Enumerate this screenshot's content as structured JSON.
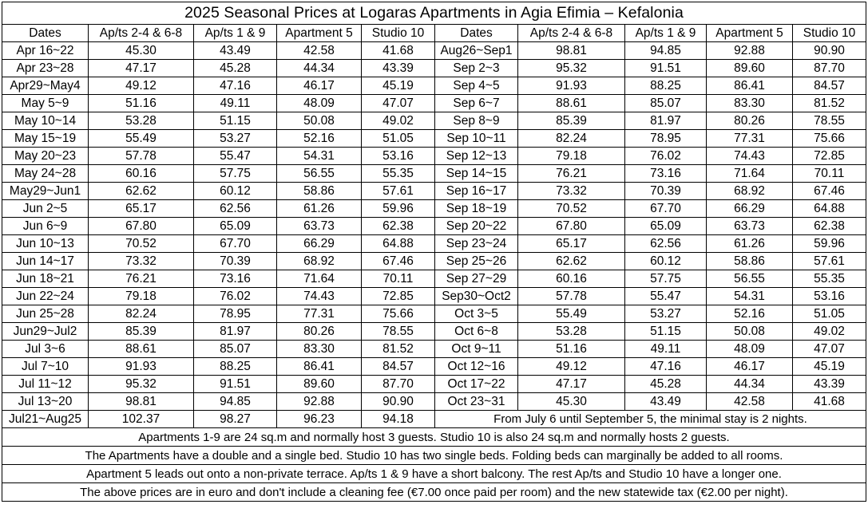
{
  "title": "2025 Seasonal Prices at Logaras Apartments in Agia Efimia – Kefalonia",
  "headers": [
    "Dates",
    "Ap/ts 2-4 & 6-8",
    "Ap/ts 1 & 9",
    "Apartment 5",
    "Studio 10"
  ],
  "left_rows": [
    {
      "dates": "Apr 16~22",
      "a": "45.30",
      "b": "43.49",
      "c": "42.58",
      "d": "41.68"
    },
    {
      "dates": "Apr 23~28",
      "a": "47.17",
      "b": "45.28",
      "c": "44.34",
      "d": "43.39"
    },
    {
      "dates": "Apr29~May4",
      "a": "49.12",
      "b": "47.16",
      "c": "46.17",
      "d": "45.19"
    },
    {
      "dates": "May 5~9",
      "a": "51.16",
      "b": "49.11",
      "c": "48.09",
      "d": "47.07"
    },
    {
      "dates": "May 10~14",
      "a": "53.28",
      "b": "51.15",
      "c": "50.08",
      "d": "49.02"
    },
    {
      "dates": "May 15~19",
      "a": "55.49",
      "b": "53.27",
      "c": "52.16",
      "d": "51.05"
    },
    {
      "dates": "May 20~23",
      "a": "57.78",
      "b": "55.47",
      "c": "54.31",
      "d": "53.16"
    },
    {
      "dates": "May 24~28",
      "a": "60.16",
      "b": "57.75",
      "c": "56.55",
      "d": "55.35"
    },
    {
      "dates": "May29~Jun1",
      "a": "62.62",
      "b": "60.12",
      "c": "58.86",
      "d": "57.61"
    },
    {
      "dates": "Jun 2~5",
      "a": "65.17",
      "b": "62.56",
      "c": "61.26",
      "d": "59.96"
    },
    {
      "dates": "Jun 6~9",
      "a": "67.80",
      "b": "65.09",
      "c": "63.73",
      "d": "62.38"
    },
    {
      "dates": "Jun 10~13",
      "a": "70.52",
      "b": "67.70",
      "c": "66.29",
      "d": "64.88"
    },
    {
      "dates": "Jun 14~17",
      "a": "73.32",
      "b": "70.39",
      "c": "68.92",
      "d": "67.46"
    },
    {
      "dates": "Jun 18~21",
      "a": "76.21",
      "b": "73.16",
      "c": "71.64",
      "d": "70.11"
    },
    {
      "dates": "Jun 22~24",
      "a": "79.18",
      "b": "76.02",
      "c": "74.43",
      "d": "72.85"
    },
    {
      "dates": "Jun 25~28",
      "a": "82.24",
      "b": "78.95",
      "c": "77.31",
      "d": "75.66"
    },
    {
      "dates": "Jun29~Jul2",
      "a": "85.39",
      "b": "81.97",
      "c": "80.26",
      "d": "78.55"
    },
    {
      "dates": "Jul 3~6",
      "a": "88.61",
      "b": "85.07",
      "c": "83.30",
      "d": "81.52"
    },
    {
      "dates": "Jul 7~10",
      "a": "91.93",
      "b": "88.25",
      "c": "86.41",
      "d": "84.57"
    },
    {
      "dates": "Jul 11~12",
      "a": "95.32",
      "b": "91.51",
      "c": "89.60",
      "d": "87.70"
    },
    {
      "dates": "Jul 13~20",
      "a": "98.81",
      "b": "94.85",
      "c": "92.88",
      "d": "90.90"
    },
    {
      "dates": "Jul21~Aug25",
      "a": "102.37",
      "b": "98.27",
      "c": "96.23",
      "d": "94.18"
    }
  ],
  "right_rows": [
    {
      "dates": "Aug26~Sep1",
      "a": "98.81",
      "b": "94.85",
      "c": "92.88",
      "d": "90.90"
    },
    {
      "dates": "Sep 2~3",
      "a": "95.32",
      "b": "91.51",
      "c": "89.60",
      "d": "87.70"
    },
    {
      "dates": "Sep 4~5",
      "a": "91.93",
      "b": "88.25",
      "c": "86.41",
      "d": "84.57"
    },
    {
      "dates": "Sep 6~7",
      "a": "88.61",
      "b": "85.07",
      "c": "83.30",
      "d": "81.52"
    },
    {
      "dates": "Sep 8~9",
      "a": "85.39",
      "b": "81.97",
      "c": "80.26",
      "d": "78.55"
    },
    {
      "dates": "Sep 10~11",
      "a": "82.24",
      "b": "78.95",
      "c": "77.31",
      "d": "75.66"
    },
    {
      "dates": "Sep 12~13",
      "a": "79.18",
      "b": "76.02",
      "c": "74.43",
      "d": "72.85"
    },
    {
      "dates": "Sep 14~15",
      "a": "76.21",
      "b": "73.16",
      "c": "71.64",
      "d": "70.11"
    },
    {
      "dates": "Sep 16~17",
      "a": "73.32",
      "b": "70.39",
      "c": "68.92",
      "d": "67.46"
    },
    {
      "dates": "Sep 18~19",
      "a": "70.52",
      "b": "67.70",
      "c": "66.29",
      "d": "64.88"
    },
    {
      "dates": "Sep 20~22",
      "a": "67.80",
      "b": "65.09",
      "c": "63.73",
      "d": "62.38"
    },
    {
      "dates": "Sep 23~24",
      "a": "65.17",
      "b": "62.56",
      "c": "61.26",
      "d": "59.96"
    },
    {
      "dates": "Sep 25~26",
      "a": "62.62",
      "b": "60.12",
      "c": "58.86",
      "d": "57.61"
    },
    {
      "dates": "Sep 27~29",
      "a": "60.16",
      "b": "57.75",
      "c": "56.55",
      "d": "55.35"
    },
    {
      "dates": "Sep30~Oct2",
      "a": "57.78",
      "b": "55.47",
      "c": "54.31",
      "d": "53.16"
    },
    {
      "dates": "Oct 3~5",
      "a": "55.49",
      "b": "53.27",
      "c": "52.16",
      "d": "51.05"
    },
    {
      "dates": "Oct 6~8",
      "a": "53.28",
      "b": "51.15",
      "c": "50.08",
      "d": "49.02"
    },
    {
      "dates": "Oct 9~11",
      "a": "51.16",
      "b": "49.11",
      "c": "48.09",
      "d": "47.07"
    },
    {
      "dates": "Oct 12~16",
      "a": "49.12",
      "b": "47.16",
      "c": "46.17",
      "d": "45.19"
    },
    {
      "dates": "Oct 17~22",
      "a": "47.17",
      "b": "45.28",
      "c": "44.34",
      "d": "43.39"
    },
    {
      "dates": "Oct 23~31",
      "a": "45.30",
      "b": "43.49",
      "c": "42.58",
      "d": "41.68"
    }
  ],
  "minimal_stay_note": "From July 6 until September 5, the minimal stay is 2 nights.",
  "notes": [
    "Apartments 1-9 are 24 sq.m and normally host 3 guests. Studio 10 is also 24 sq.m and normally hosts 2 guests.",
    "The Apartments have a double and a single bed. Studio 10 has two single beds. Folding beds can marginally be added to all rooms.",
    "Apartment 5 leads out onto a non-private terrace. Ap/ts 1 & 9 have a short balcony. The rest Ap/ts and Studio 10 have a longer one.",
    "The above prices are in euro and don't include a cleaning fee (€7.00 once paid per room) and the new statewide tax (€2.00 per night)."
  ]
}
